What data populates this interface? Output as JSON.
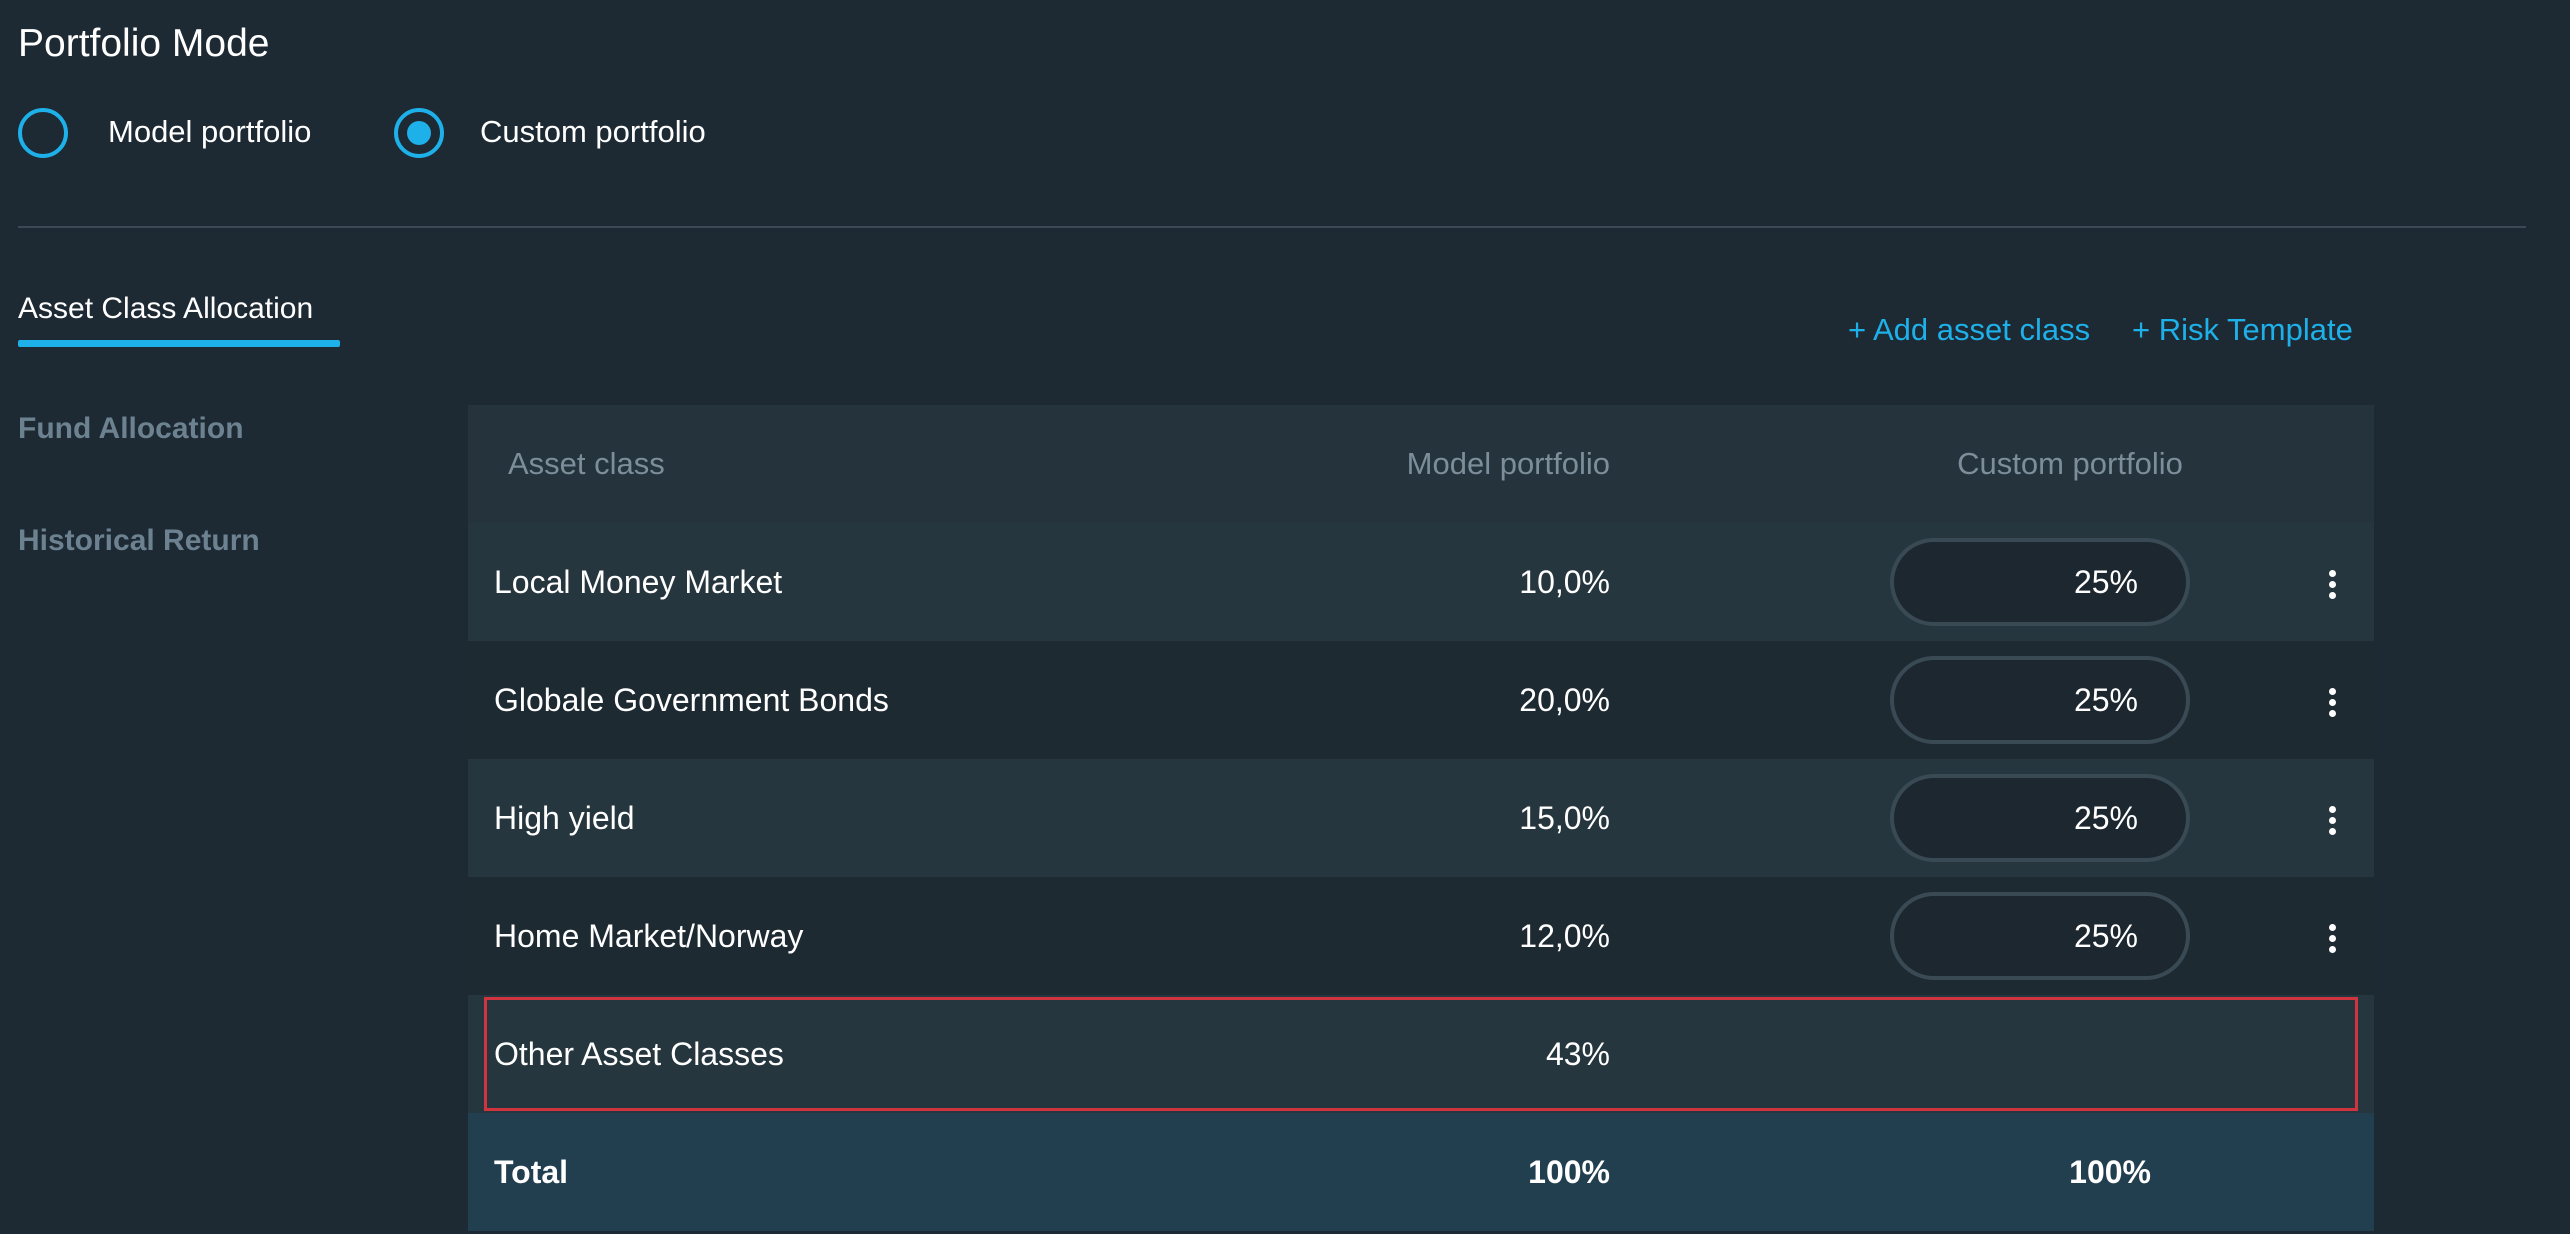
{
  "page": {
    "title": "Portfolio Mode"
  },
  "mode": {
    "options": [
      {
        "label": "Model portfolio",
        "selected": false
      },
      {
        "label": "Custom portfolio",
        "selected": true
      }
    ]
  },
  "sidebar": {
    "tabs": [
      {
        "label": "Asset Class Allocation",
        "active": true
      },
      {
        "label": "Fund Allocation",
        "active": false
      },
      {
        "label": "Historical Return",
        "active": false
      }
    ]
  },
  "actions": {
    "add_asset_class": "+ Add asset class",
    "risk_template": "+ Risk Template"
  },
  "table": {
    "headers": {
      "asset_class": "Asset class",
      "model": "Model portfolio",
      "custom": "Custom portfolio"
    },
    "rows": [
      {
        "name": "Local Money Market",
        "model": "10,0%",
        "custom": "25%"
      },
      {
        "name": "Globale Government Bonds",
        "model": "20,0%",
        "custom": "25%"
      },
      {
        "name": "High yield",
        "model": "15,0%",
        "custom": "25%"
      },
      {
        "name": "Home Market/Norway",
        "model": "12,0%",
        "custom": "25%"
      }
    ],
    "other": {
      "name": "Other Asset Classes",
      "model": "43%"
    },
    "total": {
      "name": "Total",
      "model": "100%",
      "custom": "100%"
    }
  },
  "colors": {
    "background": "#1d2933",
    "accent": "#1eb0e8",
    "highlight": "#d0343e",
    "total_row": "#223f50"
  }
}
